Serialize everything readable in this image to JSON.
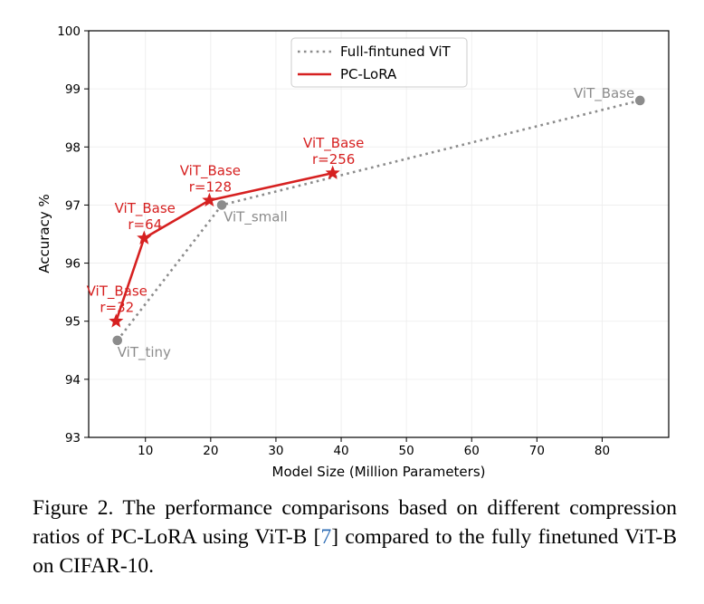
{
  "chart_data": {
    "type": "line",
    "xlabel": "Model Size (Million Parameters)",
    "ylabel": "Accuracy %",
    "xlim": [
      1.3,
      90.2
    ],
    "ylim": [
      93,
      100
    ],
    "x_ticks": [
      10,
      20,
      30,
      40,
      50,
      60,
      70,
      80
    ],
    "y_ticks": [
      93,
      94,
      95,
      96,
      97,
      98,
      99,
      100
    ],
    "grid": true,
    "legend": {
      "placement": "top-center",
      "entries": [
        "Full-fintuned ViT",
        "PC-LoRA"
      ]
    },
    "series": [
      {
        "name": "Full-fintuned ViT",
        "style": "dotted",
        "marker": "circle",
        "color": "#8c8c8c",
        "points": [
          {
            "x": 5.7,
            "y": 94.67,
            "label": "ViT_tiny"
          },
          {
            "x": 21.7,
            "y": 97.0,
            "label": "ViT_small"
          },
          {
            "x": 85.8,
            "y": 98.8,
            "label": "ViT_Base"
          }
        ]
      },
      {
        "name": "PC-LoRA",
        "style": "solid",
        "marker": "star",
        "color": "#d62020",
        "points": [
          {
            "x": 5.5,
            "y": 95.0,
            "label": "ViT_Base",
            "label2": "r=32"
          },
          {
            "x": 9.8,
            "y": 96.43,
            "label": "ViT_Base",
            "label2": "r=64"
          },
          {
            "x": 19.8,
            "y": 97.08,
            "label": "ViT_Base",
            "label2": "r=128"
          },
          {
            "x": 38.7,
            "y": 97.55,
            "label": "ViT_Base",
            "label2": "r=256"
          }
        ]
      }
    ]
  },
  "caption": {
    "prefix": "Figure 2.  The performance comparisons based on different compression ratios of PC-LoRA using ViT-B [",
    "ref": "7",
    "suffix": "] compared to the fully finetuned ViT-B on CIFAR-10."
  }
}
